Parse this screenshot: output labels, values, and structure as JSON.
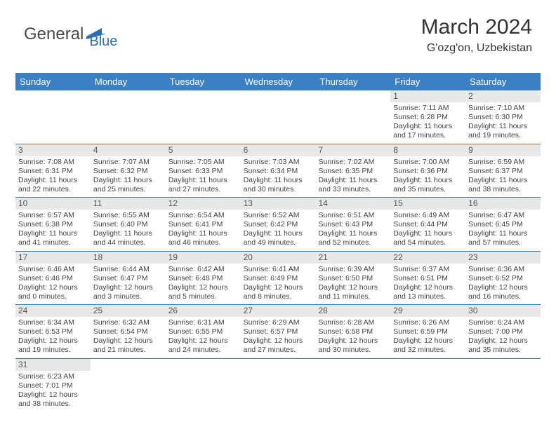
{
  "brand": {
    "part1": "General",
    "part2": "Blue",
    "color1": "#4a4a4a",
    "color2": "#2a6fb5"
  },
  "title": {
    "month": "March 2024",
    "location": "G'ozg'on, Uzbekistan",
    "title_fontsize": 30,
    "location_fontsize": 16
  },
  "colors": {
    "header_bg": "#3b7fc4",
    "header_fg": "#ffffff",
    "daynum_bg": "#e8e8e8",
    "row_border": "#3b7fc4",
    "text": "#444444"
  },
  "dayNames": [
    "Sunday",
    "Monday",
    "Tuesday",
    "Wednesday",
    "Thursday",
    "Friday",
    "Saturday"
  ],
  "weeks": [
    [
      {
        "empty": true
      },
      {
        "empty": true
      },
      {
        "empty": true
      },
      {
        "empty": true
      },
      {
        "empty": true
      },
      {
        "n": "1",
        "sr": "Sunrise: 7:11 AM",
        "ss": "Sunset: 6:28 PM",
        "d1": "Daylight: 11 hours",
        "d2": "and 17 minutes."
      },
      {
        "n": "2",
        "sr": "Sunrise: 7:10 AM",
        "ss": "Sunset: 6:30 PM",
        "d1": "Daylight: 11 hours",
        "d2": "and 19 minutes."
      }
    ],
    [
      {
        "n": "3",
        "sr": "Sunrise: 7:08 AM",
        "ss": "Sunset: 6:31 PM",
        "d1": "Daylight: 11 hours",
        "d2": "and 22 minutes."
      },
      {
        "n": "4",
        "sr": "Sunrise: 7:07 AM",
        "ss": "Sunset: 6:32 PM",
        "d1": "Daylight: 11 hours",
        "d2": "and 25 minutes."
      },
      {
        "n": "5",
        "sr": "Sunrise: 7:05 AM",
        "ss": "Sunset: 6:33 PM",
        "d1": "Daylight: 11 hours",
        "d2": "and 27 minutes."
      },
      {
        "n": "6",
        "sr": "Sunrise: 7:03 AM",
        "ss": "Sunset: 6:34 PM",
        "d1": "Daylight: 11 hours",
        "d2": "and 30 minutes."
      },
      {
        "n": "7",
        "sr": "Sunrise: 7:02 AM",
        "ss": "Sunset: 6:35 PM",
        "d1": "Daylight: 11 hours",
        "d2": "and 33 minutes."
      },
      {
        "n": "8",
        "sr": "Sunrise: 7:00 AM",
        "ss": "Sunset: 6:36 PM",
        "d1": "Daylight: 11 hours",
        "d2": "and 35 minutes."
      },
      {
        "n": "9",
        "sr": "Sunrise: 6:59 AM",
        "ss": "Sunset: 6:37 PM",
        "d1": "Daylight: 11 hours",
        "d2": "and 38 minutes."
      }
    ],
    [
      {
        "n": "10",
        "sr": "Sunrise: 6:57 AM",
        "ss": "Sunset: 6:38 PM",
        "d1": "Daylight: 11 hours",
        "d2": "and 41 minutes."
      },
      {
        "n": "11",
        "sr": "Sunrise: 6:55 AM",
        "ss": "Sunset: 6:40 PM",
        "d1": "Daylight: 11 hours",
        "d2": "and 44 minutes."
      },
      {
        "n": "12",
        "sr": "Sunrise: 6:54 AM",
        "ss": "Sunset: 6:41 PM",
        "d1": "Daylight: 11 hours",
        "d2": "and 46 minutes."
      },
      {
        "n": "13",
        "sr": "Sunrise: 6:52 AM",
        "ss": "Sunset: 6:42 PM",
        "d1": "Daylight: 11 hours",
        "d2": "and 49 minutes."
      },
      {
        "n": "14",
        "sr": "Sunrise: 6:51 AM",
        "ss": "Sunset: 6:43 PM",
        "d1": "Daylight: 11 hours",
        "d2": "and 52 minutes."
      },
      {
        "n": "15",
        "sr": "Sunrise: 6:49 AM",
        "ss": "Sunset: 6:44 PM",
        "d1": "Daylight: 11 hours",
        "d2": "and 54 minutes."
      },
      {
        "n": "16",
        "sr": "Sunrise: 6:47 AM",
        "ss": "Sunset: 6:45 PM",
        "d1": "Daylight: 11 hours",
        "d2": "and 57 minutes."
      }
    ],
    [
      {
        "n": "17",
        "sr": "Sunrise: 6:46 AM",
        "ss": "Sunset: 6:46 PM",
        "d1": "Daylight: 12 hours",
        "d2": "and 0 minutes."
      },
      {
        "n": "18",
        "sr": "Sunrise: 6:44 AM",
        "ss": "Sunset: 6:47 PM",
        "d1": "Daylight: 12 hours",
        "d2": "and 3 minutes."
      },
      {
        "n": "19",
        "sr": "Sunrise: 6:42 AM",
        "ss": "Sunset: 6:48 PM",
        "d1": "Daylight: 12 hours",
        "d2": "and 5 minutes."
      },
      {
        "n": "20",
        "sr": "Sunrise: 6:41 AM",
        "ss": "Sunset: 6:49 PM",
        "d1": "Daylight: 12 hours",
        "d2": "and 8 minutes."
      },
      {
        "n": "21",
        "sr": "Sunrise: 6:39 AM",
        "ss": "Sunset: 6:50 PM",
        "d1": "Daylight: 12 hours",
        "d2": "and 11 minutes."
      },
      {
        "n": "22",
        "sr": "Sunrise: 6:37 AM",
        "ss": "Sunset: 6:51 PM",
        "d1": "Daylight: 12 hours",
        "d2": "and 13 minutes."
      },
      {
        "n": "23",
        "sr": "Sunrise: 6:36 AM",
        "ss": "Sunset: 6:52 PM",
        "d1": "Daylight: 12 hours",
        "d2": "and 16 minutes."
      }
    ],
    [
      {
        "n": "24",
        "sr": "Sunrise: 6:34 AM",
        "ss": "Sunset: 6:53 PM",
        "d1": "Daylight: 12 hours",
        "d2": "and 19 minutes."
      },
      {
        "n": "25",
        "sr": "Sunrise: 6:32 AM",
        "ss": "Sunset: 6:54 PM",
        "d1": "Daylight: 12 hours",
        "d2": "and 21 minutes."
      },
      {
        "n": "26",
        "sr": "Sunrise: 6:31 AM",
        "ss": "Sunset: 6:55 PM",
        "d1": "Daylight: 12 hours",
        "d2": "and 24 minutes."
      },
      {
        "n": "27",
        "sr": "Sunrise: 6:29 AM",
        "ss": "Sunset: 6:57 PM",
        "d1": "Daylight: 12 hours",
        "d2": "and 27 minutes."
      },
      {
        "n": "28",
        "sr": "Sunrise: 6:28 AM",
        "ss": "Sunset: 6:58 PM",
        "d1": "Daylight: 12 hours",
        "d2": "and 30 minutes."
      },
      {
        "n": "29",
        "sr": "Sunrise: 6:26 AM",
        "ss": "Sunset: 6:59 PM",
        "d1": "Daylight: 12 hours",
        "d2": "and 32 minutes."
      },
      {
        "n": "30",
        "sr": "Sunrise: 6:24 AM",
        "ss": "Sunset: 7:00 PM",
        "d1": "Daylight: 12 hours",
        "d2": "and 35 minutes."
      }
    ],
    [
      {
        "n": "31",
        "sr": "Sunrise: 6:23 AM",
        "ss": "Sunset: 7:01 PM",
        "d1": "Daylight: 12 hours",
        "d2": "and 38 minutes."
      },
      {
        "empty": true
      },
      {
        "empty": true
      },
      {
        "empty": true
      },
      {
        "empty": true
      },
      {
        "empty": true
      },
      {
        "empty": true
      }
    ]
  ]
}
